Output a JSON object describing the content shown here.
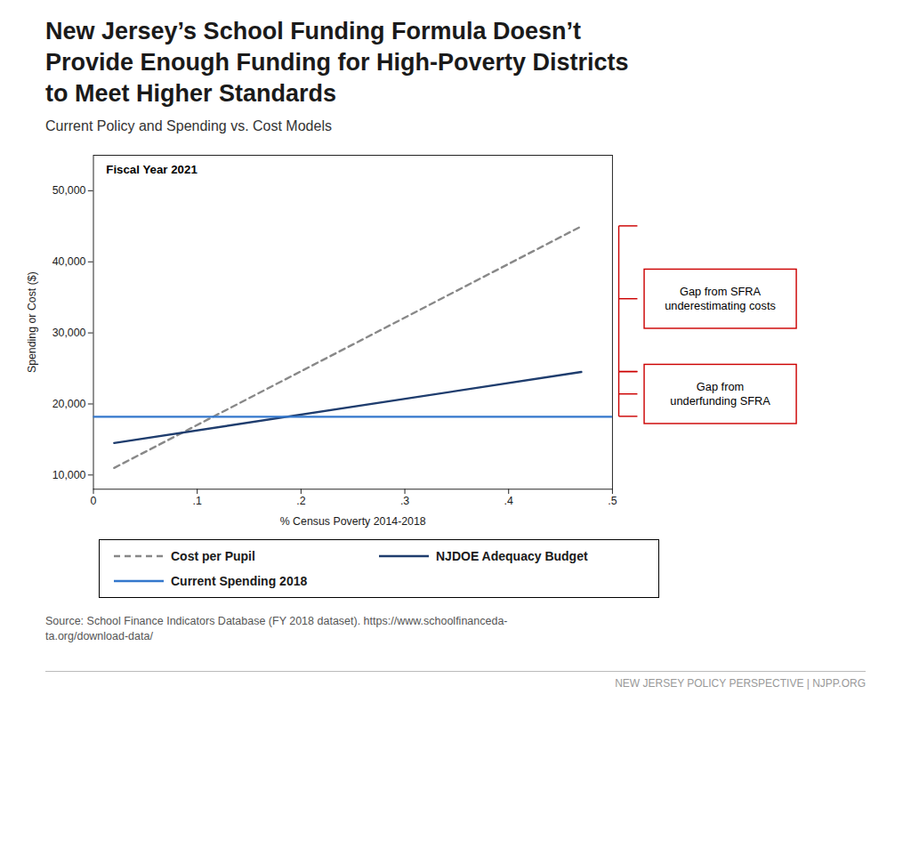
{
  "chart_data": {
    "type": "line",
    "title": "New Jersey’s School Funding Formula Doesn’t\nProvide Enough Funding for High-Poverty Districts\nto Meet Higher Standards",
    "subtitle": "Current Policy and Spending vs. Cost Models",
    "xlabel": "% Census Poverty 2014-2018",
    "ylabel": "Spending or Cost ($)",
    "xlim": [
      0,
      0.5
    ],
    "ylim": [
      8000,
      55000
    ],
    "xticks": [
      0,
      {
        "value": 0.1,
        "label": ".1"
      },
      {
        "value": 0.2,
        "label": ".2"
      },
      {
        "value": 0.3,
        "label": ".3"
      },
      {
        "value": 0.4,
        "label": ".4"
      },
      {
        "value": 0.5,
        "label": ".5"
      }
    ],
    "yticks": [
      {
        "value": 10000,
        "label": "10,000"
      },
      {
        "value": 20000,
        "label": "20,000"
      },
      {
        "value": 30000,
        "label": "30,000"
      },
      {
        "value": 40000,
        "label": "40,000"
      },
      {
        "value": 50000,
        "label": "50,000"
      }
    ],
    "grid": false,
    "legend": "bottom",
    "series": [
      {
        "name": "Cost per Pupil",
        "color": "#888888",
        "line_style": "dashed",
        "x": [
          0.02,
          0.47
        ],
        "values": [
          11000,
          45000
        ]
      },
      {
        "name": "NJDOE Adequacy Budget",
        "color": "#1f3d6e",
        "line_style": "solid",
        "x": [
          0.02,
          0.47
        ],
        "values": [
          14500,
          24500
        ]
      },
      {
        "name": "Current Spending 2018",
        "color": "#3377cc",
        "line_style": "solid",
        "x": [
          0.0,
          0.5
        ],
        "values": [
          18200,
          18200
        ]
      }
    ],
    "annotations": [
      {
        "text": "Fiscal Year 2021"
      },
      {
        "text": "Gap from SFRA\nunderestimating costs",
        "y": [
          45000,
          24500
        ],
        "color": "#cc0000"
      },
      {
        "text": "Gap from\nunderfunding SFRA",
        "y": [
          24500,
          18200
        ],
        "color": "#cc0000"
      }
    ],
    "source": "Source: School Finance Indicators Database (FY 2018 dataset). https://www.schoolfinanceda-\nta.org/download-data/",
    "footer": "NEW JERSEY POLICY PERSPECTIVE | NJPP.ORG"
  }
}
